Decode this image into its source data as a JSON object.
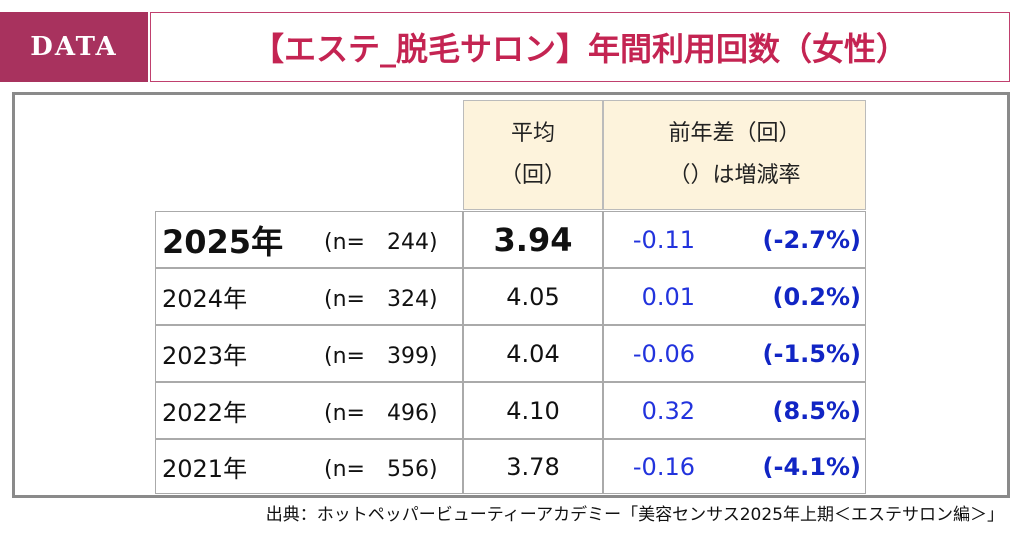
{
  "header": {
    "badge": "DATA",
    "title": "【エステ_脱毛サロン】年間利用回数（女性）"
  },
  "table": {
    "columns": [
      {
        "lines": [
          "平均",
          "（回）"
        ]
      },
      {
        "lines": [
          "前年差（回）",
          "（）は増減率"
        ]
      }
    ],
    "rows": [
      {
        "year": "2025年",
        "n": "(n=　244)",
        "average": "3.94",
        "diff": "-0.11",
        "rate": "(-2.7%)"
      },
      {
        "year": "2024年",
        "n": "(n=　324)",
        "average": "4.05",
        "diff": "0.01",
        "rate": "(0.2%)"
      },
      {
        "year": "2023年",
        "n": "(n=　399)",
        "average": "4.04",
        "diff": "-0.06",
        "rate": "(-1.5%)"
      },
      {
        "year": "2022年",
        "n": "(n=　496)",
        "average": "4.10",
        "diff": "0.32",
        "rate": "(8.5%)"
      },
      {
        "year": "2021年",
        "n": "(n=　556)",
        "average": "3.78",
        "diff": "-0.16",
        "rate": "(-4.1%)"
      }
    ]
  },
  "source": "出典：ホットペッパービューティーアカデミー「美容センサス2025年上期＜エステサロン編＞」"
}
